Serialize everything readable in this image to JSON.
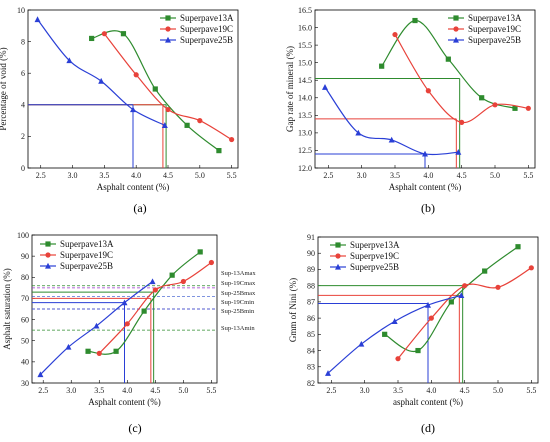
{
  "chart_data": [
    {
      "type": "line",
      "panel_label": "(a)",
      "xlabel": "Asphalt content (%)",
      "ylabel": "Percentage of void (%)",
      "xlim": [
        2.3,
        5.6
      ],
      "ylim": [
        0,
        10
      ],
      "xticks": [
        "2.5",
        "3.0",
        "3.5",
        "4.0",
        "4.5",
        "5.0",
        "5.5"
      ],
      "yticks": [
        "0",
        "2",
        "4",
        "6",
        "8",
        "10"
      ],
      "legend_position": "top-right",
      "series": [
        {
          "name": "Superpave13A",
          "color": "#2e8b2e",
          "marker": "square",
          "x": [
            3.3,
            3.8,
            4.3,
            4.8,
            5.3
          ],
          "y": [
            8.2,
            8.5,
            5.0,
            2.7,
            1.1
          ]
        },
        {
          "name": "Superpave19C",
          "color": "#e8423a",
          "marker": "circle",
          "x": [
            3.5,
            4.0,
            4.5,
            5.0,
            5.5
          ],
          "y": [
            8.5,
            5.9,
            3.7,
            3.0,
            1.8
          ]
        },
        {
          "name": "Superpave25B",
          "color": "#2a3fd6",
          "marker": "triangle",
          "x": [
            2.45,
            2.95,
            3.45,
            3.95,
            4.45
          ],
          "y": [
            9.4,
            6.8,
            5.5,
            3.7,
            2.7
          ]
        }
      ],
      "ref_lines": [
        {
          "series": "Superpave13A",
          "color": "#2e8b2e",
          "x": 4.47,
          "y": 4.0
        },
        {
          "series": "Superpave19C",
          "color": "#e8423a",
          "x": 4.42,
          "y": 4.0
        },
        {
          "series": "Superpave25B",
          "color": "#2a3fd6",
          "x": 3.95,
          "y": 4.0
        }
      ]
    },
    {
      "type": "line",
      "panel_label": "(b)",
      "xlabel": "Asphalt content (%)",
      "ylabel": "Gap rate of mineral (%)",
      "xlim": [
        2.3,
        5.6
      ],
      "ylim": [
        12.0,
        16.5
      ],
      "xticks": [
        "2.5",
        "3.0",
        "3.5",
        "4.0",
        "4.5",
        "5.0",
        "5.5"
      ],
      "yticks": [
        "12.0",
        "12.5",
        "13.0",
        "13.5",
        "14.0",
        "14.5",
        "15.0",
        "15.5",
        "16.0",
        "16.5"
      ],
      "legend_position": "top-right",
      "series": [
        {
          "name": "Superpave13A",
          "color": "#2e8b2e",
          "marker": "square",
          "x": [
            3.3,
            3.8,
            4.3,
            4.8,
            5.3
          ],
          "y": [
            14.9,
            16.2,
            15.1,
            14.0,
            13.7
          ]
        },
        {
          "name": "Superpave19C",
          "color": "#e8423a",
          "marker": "circle",
          "x": [
            3.5,
            4.0,
            4.5,
            5.0,
            5.5
          ],
          "y": [
            15.8,
            14.2,
            13.3,
            13.8,
            13.7
          ]
        },
        {
          "name": "Superpave25B",
          "color": "#2a3fd6",
          "marker": "triangle",
          "x": [
            2.45,
            2.95,
            3.45,
            3.95,
            4.45
          ],
          "y": [
            14.3,
            13.0,
            12.8,
            12.4,
            12.45
          ]
        }
      ],
      "ref_lines": [
        {
          "series": "Superpave13A",
          "color": "#2e8b2e",
          "x": 4.47,
          "y": 14.55
        },
        {
          "series": "Superpave19C",
          "color": "#e8423a",
          "x": 4.42,
          "y": 13.4
        },
        {
          "series": "Superpave25B",
          "color": "#2a3fd6",
          "x": 3.95,
          "y": 12.4
        }
      ]
    },
    {
      "type": "line",
      "panel_label": "(c)",
      "xlabel": "Asphalt content (%)",
      "ylabel": "Asphalt saturation (%)",
      "xlim": [
        2.3,
        5.6
      ],
      "ylim": [
        30,
        100
      ],
      "xticks": [
        "2.5",
        "3.0",
        "3.5",
        "4.0",
        "4.5",
        "5.0",
        "5.5"
      ],
      "yticks": [
        "30",
        "40",
        "50",
        "60",
        "70",
        "80",
        "90",
        "100"
      ],
      "legend_position": "top-left",
      "series": [
        {
          "name": "Superpave13A",
          "color": "#2e8b2e",
          "marker": "square",
          "x": [
            3.3,
            3.8,
            4.3,
            4.8,
            5.3
          ],
          "y": [
            45,
            45,
            64,
            81,
            92
          ]
        },
        {
          "name": "Superpave19C",
          "color": "#e8423a",
          "marker": "circle",
          "x": [
            3.5,
            4.0,
            4.5,
            5.0,
            5.5
          ],
          "y": [
            44,
            58,
            74,
            78,
            87
          ]
        },
        {
          "name": "Superpave25B",
          "color": "#2a3fd6",
          "marker": "triangle",
          "x": [
            2.45,
            2.95,
            3.45,
            3.95,
            4.45
          ],
          "y": [
            34,
            47,
            57,
            68,
            78
          ]
        }
      ],
      "ref_lines": [
        {
          "series": "Superpave13A",
          "color": "#2e8b2e",
          "x": 4.47,
          "y": 73
        },
        {
          "series": "Superpave19C",
          "color": "#e8423a",
          "x": 4.42,
          "y": 70
        },
        {
          "series": "Superpave25B",
          "color": "#2a3fd6",
          "x": 3.95,
          "y": 68
        }
      ],
      "limit_lines": [
        {
          "label": "Sup-13Amax",
          "y": 76,
          "color": "#2e8b2e"
        },
        {
          "label": "Sup-19Cmax",
          "y": 75,
          "color": "#9933cc"
        },
        {
          "label": "Sup-25Bmax",
          "y": 71,
          "color": "#3355cc"
        },
        {
          "label": "Sup-19Cmin",
          "y": 65,
          "color": "#9933cc"
        },
        {
          "label": "Sup-25Bmin",
          "y": 65,
          "color": "#3355cc"
        },
        {
          "label": "Sup-13Amin",
          "y": 55,
          "color": "#2e8b2e"
        }
      ]
    },
    {
      "type": "line",
      "panel_label": "(d)",
      "xlabel": "asphalt content (%)",
      "ylabel": "Gmm of Nini (%)",
      "xlim": [
        2.3,
        5.6
      ],
      "ylim": [
        82,
        91
      ],
      "xticks": [
        "2.5",
        "3.0",
        "3.5",
        "4.0",
        "4.5",
        "5.0",
        "5.5"
      ],
      "yticks": [
        "82",
        "83",
        "84",
        "85",
        "86",
        "87",
        "88",
        "89",
        "90",
        "91"
      ],
      "legend_position": "top-left",
      "series": [
        {
          "name": "Superpve13A",
          "color": "#2e8b2e",
          "marker": "square",
          "x": [
            3.3,
            3.8,
            4.3,
            4.8,
            5.3
          ],
          "y": [
            85.0,
            84.0,
            87.0,
            88.9,
            90.4
          ]
        },
        {
          "name": "Superpve19C",
          "color": "#e8423a",
          "marker": "circle",
          "x": [
            3.5,
            4.0,
            4.5,
            5.0,
            5.5
          ],
          "y": [
            83.5,
            86.0,
            88.0,
            87.9,
            89.1
          ]
        },
        {
          "name": "Superpve25B",
          "color": "#2a3fd6",
          "marker": "triangle",
          "x": [
            2.45,
            2.95,
            3.45,
            3.95,
            4.45
          ],
          "y": [
            82.6,
            84.4,
            85.8,
            86.8,
            87.4
          ]
        }
      ],
      "ref_lines": [
        {
          "series": "Superpve13A",
          "color": "#2e8b2e",
          "x": 4.47,
          "y": 88.0
        },
        {
          "series": "Superpve19C",
          "color": "#e8423a",
          "x": 4.42,
          "y": 87.4
        },
        {
          "series": "Superpve25B",
          "color": "#2a3fd6",
          "x": 3.95,
          "y": 86.9
        }
      ]
    }
  ]
}
